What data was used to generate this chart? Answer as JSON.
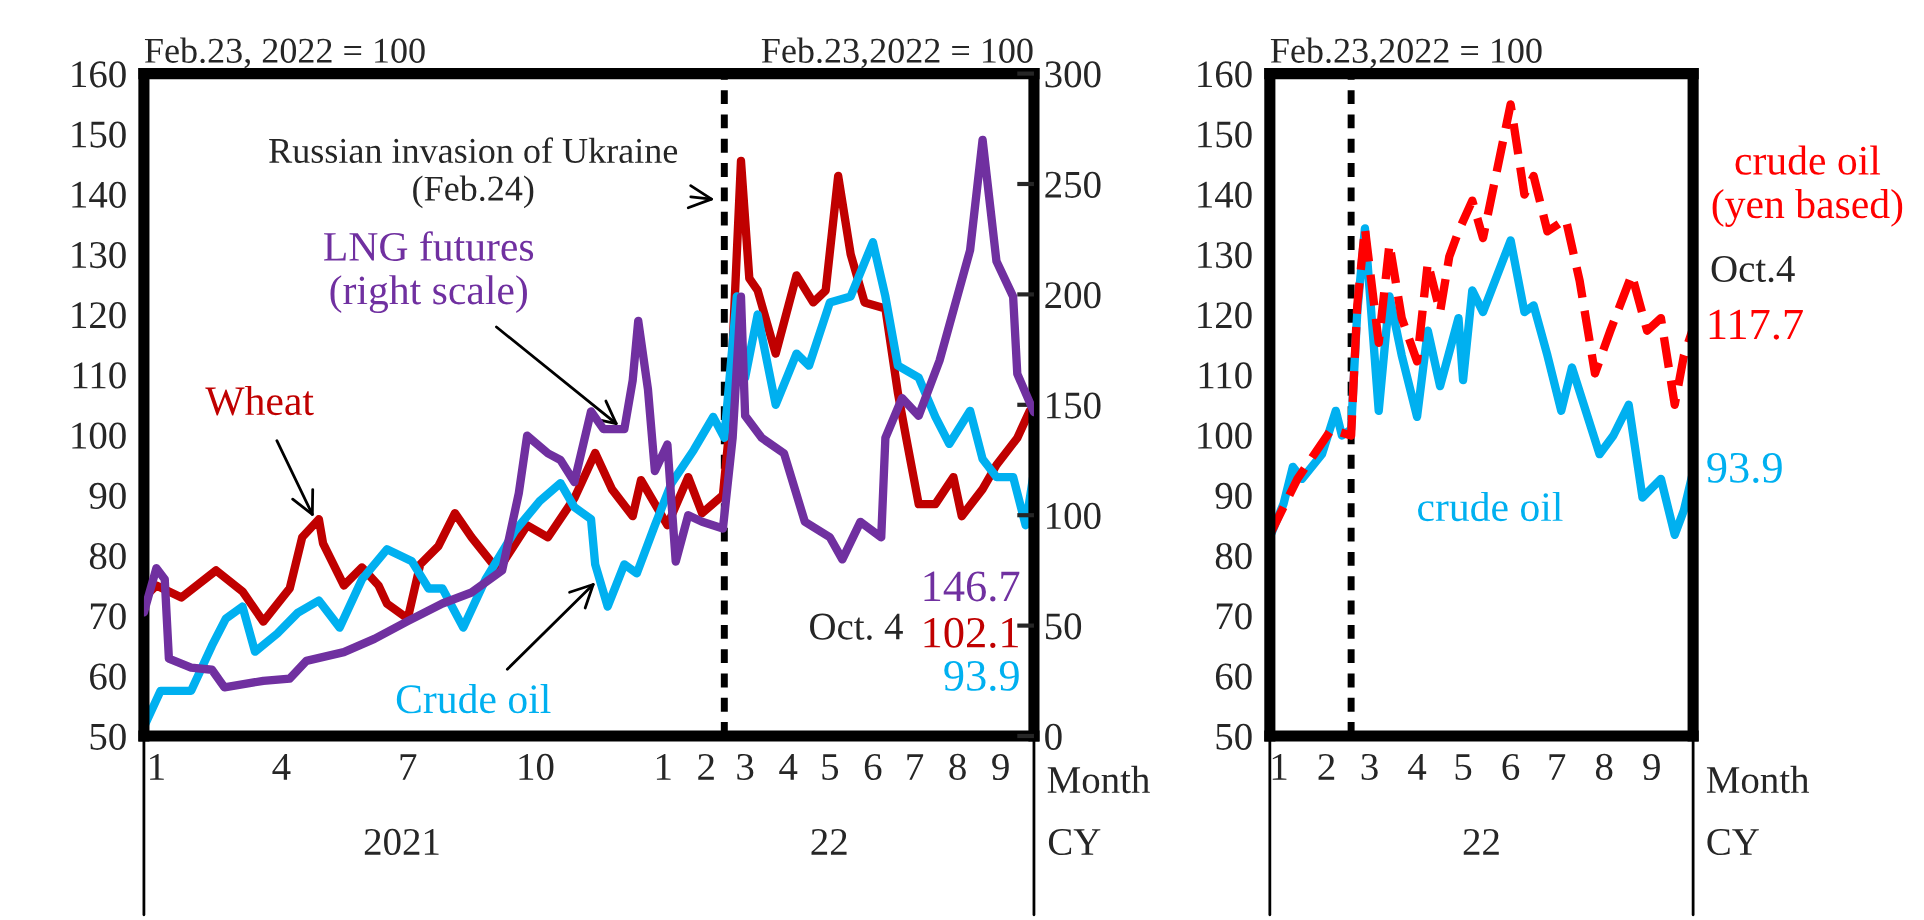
{
  "chart_data": [
    {
      "type": "line",
      "ylabel": "Feb.23, 2022 = 100",
      "y2label": "Feb.23,2022 = 100",
      "xlabel": "Month",
      "xlim": [
        "2021-01-01",
        "2022-10-04"
      ],
      "ylim": [
        50,
        160
      ],
      "y2lim": [
        0,
        300
      ],
      "xticks": [
        {
          "value": "2021-01-10",
          "label": "1"
        },
        {
          "value": "2021-04-10",
          "label": "4"
        },
        {
          "value": "2021-07-10",
          "label": "7"
        },
        {
          "value": "2021-10-10",
          "label": "10"
        },
        {
          "value": "2022-01-10",
          "label": "1"
        },
        {
          "value": "2022-02-10",
          "label": "2"
        },
        {
          "value": "2022-03-10",
          "label": "3"
        },
        {
          "value": "2022-04-10",
          "label": "4"
        },
        {
          "value": "2022-05-10",
          "label": "5"
        },
        {
          "value": "2022-06-10",
          "label": "6"
        },
        {
          "value": "2022-07-10",
          "label": "7"
        },
        {
          "value": "2022-08-10",
          "label": "8"
        },
        {
          "value": "2022-09-10",
          "label": "9"
        }
      ],
      "yticks": [
        50,
        60,
        70,
        80,
        90,
        100,
        110,
        120,
        130,
        140,
        150,
        160
      ],
      "y2ticks": [
        0,
        50,
        100,
        150,
        200,
        250,
        300
      ],
      "ref_lines": [
        {
          "axis": "x",
          "value": "2022-02-23",
          "color": "#000000",
          "line_style": "dashed"
        }
      ],
      "annotations": [
        {
          "text": "Russian invasion of Ukraine\n(Feb.24)",
          "x": "2022-02-20",
          "y": 139
        },
        "Oct. 4",
        "2021",
        "22",
        "CY",
        "146.7",
        "102.1",
        "93.9"
      ],
      "series": [
        {
          "name": "Wheat",
          "color": "#c00000",
          "x": [
            "2021-01-01",
            "2021-01-10",
            "2021-01-28",
            "2021-02-22",
            "2021-03-13",
            "2021-03-28",
            "2021-04-16",
            "2021-04-25",
            "2021-05-07",
            "2021-05-10",
            "2021-05-25",
            "2021-06-07",
            "2021-06-19",
            "2021-06-25",
            "2021-07-10",
            "2021-07-19",
            "2021-08-01",
            "2021-08-13",
            "2021-08-25",
            "2021-09-13",
            "2021-10-04",
            "2021-10-19",
            "2021-11-07",
            "2021-11-22",
            "2021-12-04",
            "2021-12-19",
            "2021-12-25",
            "2022-01-13",
            "2022-01-28",
            "2022-02-07",
            "2022-02-22",
            "2022-02-26",
            "2022-03-07",
            "2022-03-13",
            "2022-03-19",
            "2022-04-01",
            "2022-04-16",
            "2022-04-28",
            "2022-05-07",
            "2022-05-16",
            "2022-05-25",
            "2022-06-04",
            "2022-06-19",
            "2022-06-28",
            "2022-07-04",
            "2022-07-13",
            "2022-07-25",
            "2022-08-07",
            "2022-08-13",
            "2022-08-28",
            "2022-09-07",
            "2022-09-22",
            "2022-10-01",
            "2022-10-04"
          ],
          "values": [
            73,
            75,
            73,
            77.5,
            74,
            69,
            74.5,
            83,
            86,
            82,
            75,
            78,
            75,
            72,
            69.5,
            78.5,
            81.5,
            87,
            83,
            77.5,
            85,
            83,
            89.5,
            97,
            91,
            86.5,
            92.5,
            85,
            93,
            87,
            90,
            99.5,
            145.5,
            126,
            124,
            113.5,
            126.5,
            122,
            124,
            143,
            130,
            122,
            121,
            107,
            99.5,
            88.5,
            88.5,
            93,
            86.5,
            91,
            95,
            99.5,
            104,
            102.1
          ]
        },
        {
          "name": "Crude oil",
          "color": "#00b0f0",
          "x": [
            "2021-01-01",
            "2021-01-13",
            "2021-02-04",
            "2021-02-19",
            "2021-03-01",
            "2021-03-13",
            "2021-03-22",
            "2021-04-07",
            "2021-04-22",
            "2021-05-07",
            "2021-05-22",
            "2021-06-07",
            "2021-06-25",
            "2021-07-13",
            "2021-07-25",
            "2021-08-04",
            "2021-08-19",
            "2021-09-04",
            "2021-09-25",
            "2021-10-13",
            "2021-10-28",
            "2021-11-07",
            "2021-11-19",
            "2021-11-22",
            "2021-12-01",
            "2021-12-13",
            "2021-12-22",
            "2022-01-04",
            "2022-01-16",
            "2022-02-01",
            "2022-02-15",
            "2022-02-23",
            "2022-03-04",
            "2022-03-10",
            "2022-03-19",
            "2022-04-01",
            "2022-04-16",
            "2022-04-25",
            "2022-05-10",
            "2022-05-25",
            "2022-06-10",
            "2022-06-19",
            "2022-06-28",
            "2022-07-13",
            "2022-07-25",
            "2022-08-04",
            "2022-08-19",
            "2022-08-28",
            "2022-09-07",
            "2022-09-19",
            "2022-09-28",
            "2022-10-04"
          ],
          "values": [
            51.5,
            57.5,
            57.5,
            65,
            69.5,
            71.5,
            64,
            67,
            70.5,
            72.5,
            68,
            76,
            81,
            79,
            74.5,
            74.5,
            68,
            76,
            84,
            89,
            92,
            88,
            86,
            78.5,
            71.5,
            78.5,
            77,
            85,
            92,
            97.5,
            103,
            99.5,
            123,
            109.5,
            120,
            105,
            113.5,
            111.5,
            122,
            123,
            132,
            123,
            111.5,
            109.5,
            103,
            98.5,
            104,
            96,
            93,
            93,
            85,
            93.9
          ]
        },
        {
          "name": "LNG futures\n(right scale)",
          "color": "#7030a0",
          "axis": "y2",
          "x": [
            "2021-01-01",
            "2021-01-10",
            "2021-01-16",
            "2021-01-19",
            "2021-02-04",
            "2021-02-19",
            "2021-02-28",
            "2021-03-28",
            "2021-04-16",
            "2021-04-28",
            "2021-05-25",
            "2021-06-16",
            "2021-07-10",
            "2021-08-04",
            "2021-08-25",
            "2021-09-16",
            "2021-09-28",
            "2021-10-04",
            "2021-10-19",
            "2021-10-28",
            "2021-11-07",
            "2021-11-19",
            "2021-11-28",
            "2021-12-13",
            "2021-12-19",
            "2021-12-23",
            "2021-12-30",
            "2022-01-04",
            "2022-01-13",
            "2022-01-19",
            "2022-01-28",
            "2022-02-07",
            "2022-02-22",
            "2022-03-01",
            "2022-03-07",
            "2022-03-10",
            "2022-03-22",
            "2022-04-07",
            "2022-04-22",
            "2022-05-10",
            "2022-05-19",
            "2022-06-01",
            "2022-06-16",
            "2022-06-19",
            "2022-07-01",
            "2022-07-13",
            "2022-07-28",
            "2022-08-19",
            "2022-08-28",
            "2022-09-07",
            "2022-09-19",
            "2022-09-22",
            "2022-10-01",
            "2022-10-04"
          ],
          "values": [
            56,
            76,
            71,
            35,
            31,
            30,
            22,
            25,
            26,
            34,
            38,
            44,
            52,
            60,
            65,
            75,
            110,
            136,
            128,
            125,
            115,
            147,
            139,
            139,
            161,
            188,
            157,
            120,
            132,
            79,
            100,
            97,
            94,
            135,
            199,
            145,
            135,
            128,
            97,
            90,
            80,
            97,
            90,
            135,
            153,
            145,
            170,
            220,
            270,
            215,
            199,
            164,
            151,
            146.7
          ]
        }
      ]
    },
    {
      "type": "line",
      "ylabel": "Feb.23,2022 = 100",
      "xlabel": "Month",
      "xlim": [
        "2022-01-01",
        "2022-10-04"
      ],
      "ylim": [
        50,
        160
      ],
      "xticks": [
        {
          "value": "2022-01-07",
          "label": "1"
        },
        {
          "value": "2022-02-07",
          "label": "2"
        },
        {
          "value": "2022-03-07",
          "label": "3"
        },
        {
          "value": "2022-04-07",
          "label": "4"
        },
        {
          "value": "2022-05-07",
          "label": "5"
        },
        {
          "value": "2022-06-07",
          "label": "6"
        },
        {
          "value": "2022-07-07",
          "label": "7"
        },
        {
          "value": "2022-08-07",
          "label": "8"
        },
        {
          "value": "2022-09-07",
          "label": "9"
        }
      ],
      "yticks": [
        50,
        60,
        70,
        80,
        90,
        100,
        110,
        120,
        130,
        140,
        150,
        160
      ],
      "ref_lines": [
        {
          "axis": "x",
          "value": "2022-02-23",
          "color": "#000000",
          "line_style": "dashed"
        }
      ],
      "annotations": [
        "Oct.4",
        "22",
        "CY"
      ],
      "series": [
        {
          "name": "crude oil",
          "color": "#00b0f0",
          "x": [
            "2022-01-01",
            "2022-01-10",
            "2022-01-16",
            "2022-01-22",
            "2022-02-04",
            "2022-02-13",
            "2022-02-17",
            "2022-02-23",
            "2022-02-27",
            "2022-03-04",
            "2022-03-13",
            "2022-03-20",
            "2022-03-28",
            "2022-04-07",
            "2022-04-14",
            "2022-04-22",
            "2022-05-04",
            "2022-05-07",
            "2022-05-13",
            "2022-05-20",
            "2022-06-07",
            "2022-06-16",
            "2022-06-22",
            "2022-07-01",
            "2022-07-10",
            "2022-07-17",
            "2022-08-04",
            "2022-08-13",
            "2022-08-23",
            "2022-09-01",
            "2022-09-13",
            "2022-09-22",
            "2022-09-28",
            "2022-10-04"
          ],
          "values": [
            83,
            88.6,
            94.7,
            92.7,
            96.8,
            104,
            99.9,
            100.9,
            120.4,
            134.3,
            104,
            123,
            113.2,
            103,
            117.3,
            108.1,
            119.4,
            109.1,
            124,
            120.4,
            132.3,
            120.4,
            121.5,
            113.2,
            104,
            111.2,
            96.8,
            99.9,
            105,
            89.6,
            92.7,
            83.4,
            87.5,
            93.9
          ],
          "value_labels": [
            null,
            null,
            null,
            null,
            null,
            null,
            null,
            null,
            null,
            null,
            null,
            null,
            null,
            null,
            null,
            null,
            null,
            null,
            null,
            null,
            null,
            null,
            null,
            null,
            null,
            null,
            null,
            null,
            null,
            null,
            null,
            null,
            null,
            "93.9"
          ]
        },
        {
          "name": "crude oil\n(yen based)",
          "color": "#ff0000",
          "line_style": "dashed",
          "x": [
            "2022-01-01",
            "2022-01-19",
            "2022-02-10",
            "2022-02-23",
            "2022-02-27",
            "2022-03-04",
            "2022-03-13",
            "2022-03-20",
            "2022-03-28",
            "2022-04-07",
            "2022-04-14",
            "2022-04-22",
            "2022-04-28",
            "2022-05-04",
            "2022-05-13",
            "2022-05-20",
            "2022-06-07",
            "2022-06-16",
            "2022-06-22",
            "2022-07-01",
            "2022-07-13",
            "2022-07-22",
            "2022-08-01",
            "2022-08-11",
            "2022-08-25",
            "2022-09-04",
            "2022-09-13",
            "2022-09-22",
            "2022-09-28",
            "2022-10-04"
          ],
          "values": [
            83.4,
            92.7,
            100.9,
            99.9,
            121.5,
            134.3,
            115.3,
            131.7,
            119.4,
            112.2,
            128.6,
            120.4,
            129.6,
            133.8,
            138.9,
            132.7,
            154.9,
            139.9,
            143,
            133.8,
            135.8,
            125.6,
            110.2,
            117.3,
            126.6,
            117.3,
            119.4,
            105,
            113.2,
            117.7
          ],
          "value_labels": [
            null,
            null,
            null,
            null,
            null,
            null,
            null,
            null,
            null,
            null,
            null,
            null,
            null,
            null,
            null,
            null,
            null,
            null,
            null,
            null,
            null,
            null,
            null,
            null,
            null,
            null,
            null,
            null,
            null,
            "117.7"
          ]
        }
      ]
    }
  ]
}
